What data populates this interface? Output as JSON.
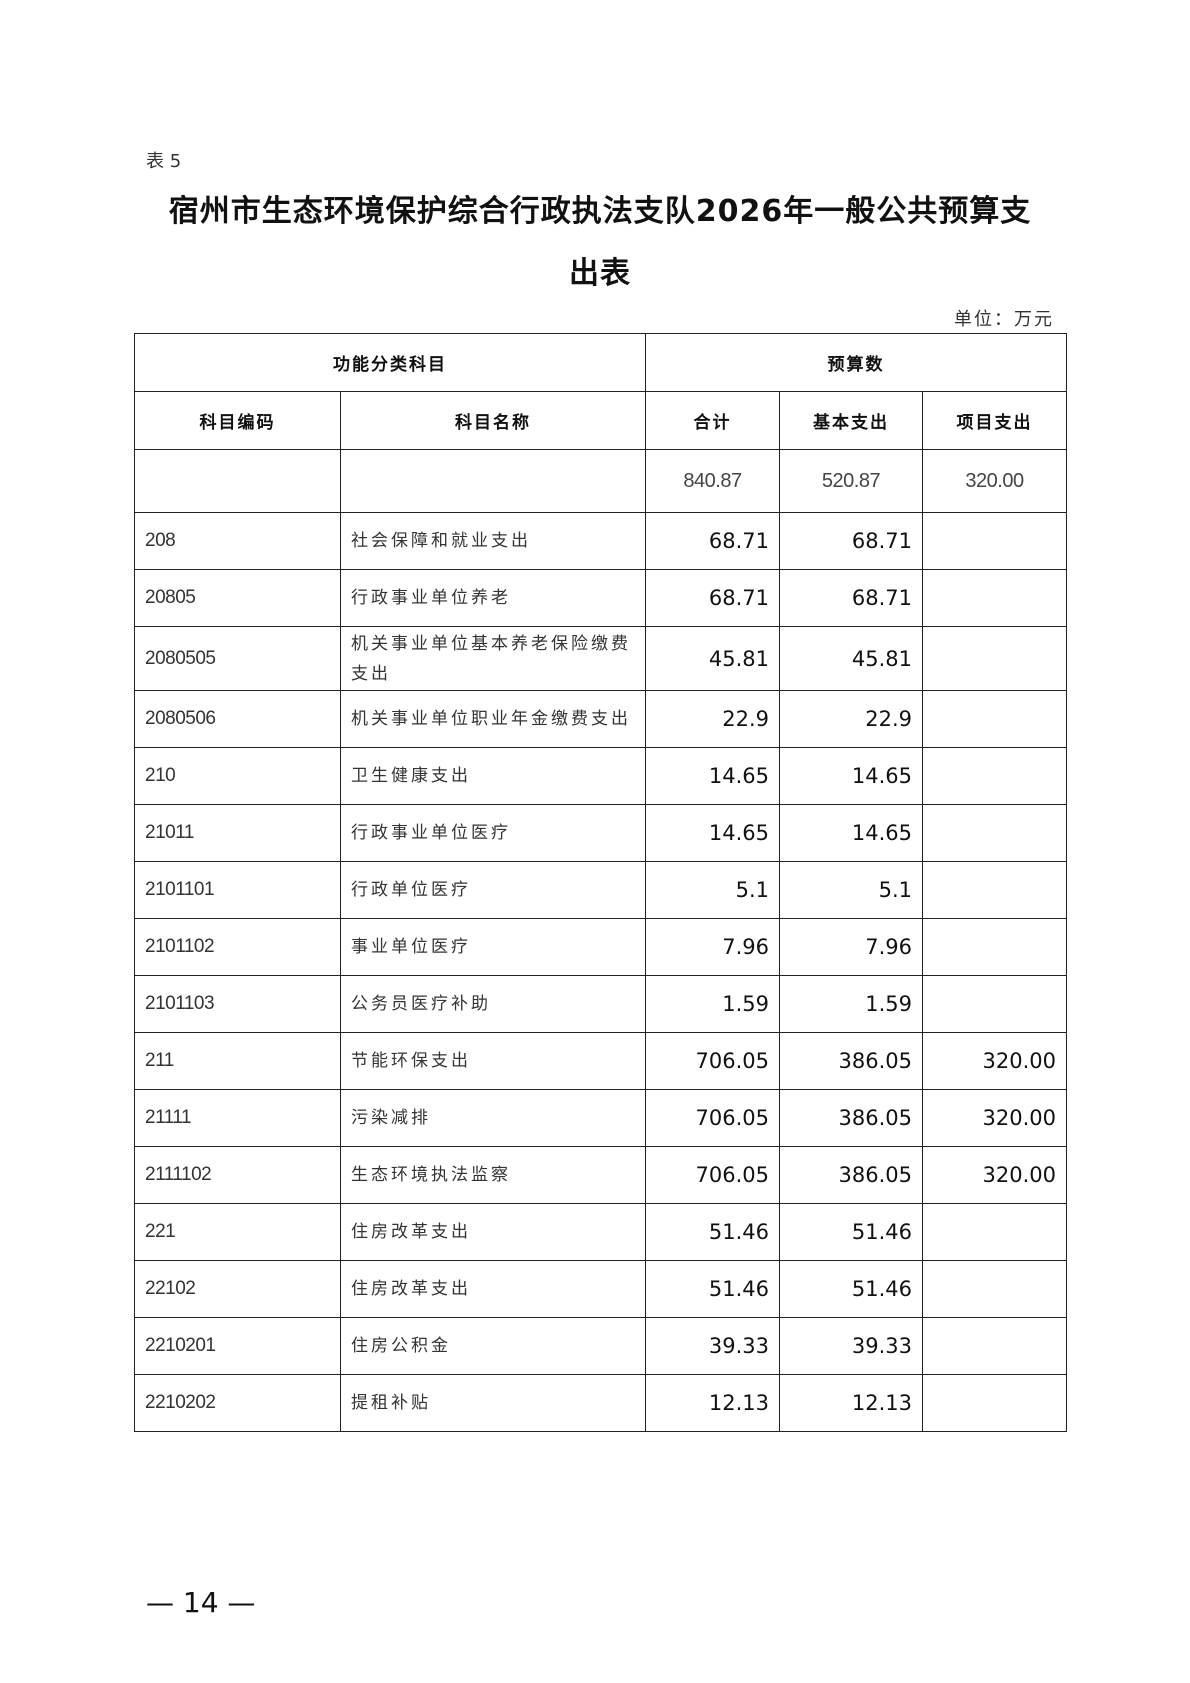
{
  "table_label": "表 5",
  "title_line1": "宿州市生态环境保护综合行政执法支队2026年一般公共预算支",
  "title_line2": "出表",
  "unit": "单位：万元",
  "headers": {
    "group_left": "功能分类科目",
    "group_right": "预算数",
    "code": "科目编码",
    "name": "科目名称",
    "total": "合计",
    "basic": "基本支出",
    "project": "项目支出"
  },
  "totals": {
    "total": "840.87",
    "basic": "520.87",
    "project": "320.00"
  },
  "rows": [
    {
      "code": "208",
      "name": "社会保障和就业支出",
      "total": "68.71",
      "basic": "68.71",
      "project": ""
    },
    {
      "code": "20805",
      "name": "行政事业单位养老",
      "total": "68.71",
      "basic": "68.71",
      "project": ""
    },
    {
      "code": "2080505",
      "name": "机关事业单位基本养老保险缴费支出",
      "total": "45.81",
      "basic": "45.81",
      "project": ""
    },
    {
      "code": "2080506",
      "name": "机关事业单位职业年金缴费支出",
      "total": "22.9",
      "basic": "22.9",
      "project": ""
    },
    {
      "code": "210",
      "name": "卫生健康支出",
      "total": "14.65",
      "basic": "14.65",
      "project": ""
    },
    {
      "code": "21011",
      "name": "行政事业单位医疗",
      "total": "14.65",
      "basic": "14.65",
      "project": ""
    },
    {
      "code": "2101101",
      "name": "行政单位医疗",
      "total": "5.1",
      "basic": "5.1",
      "project": ""
    },
    {
      "code": "2101102",
      "name": "事业单位医疗",
      "total": "7.96",
      "basic": "7.96",
      "project": ""
    },
    {
      "code": "2101103",
      "name": "公务员医疗补助",
      "total": "1.59",
      "basic": "1.59",
      "project": ""
    },
    {
      "code": "211",
      "name": "节能环保支出",
      "total": "706.05",
      "basic": "386.05",
      "project": "320.00"
    },
    {
      "code": "21111",
      "name": "污染减排",
      "total": "706.05",
      "basic": "386.05",
      "project": "320.00"
    },
    {
      "code": "2111102",
      "name": "生态环境执法监察",
      "total": "706.05",
      "basic": "386.05",
      "project": "320.00"
    },
    {
      "code": "221",
      "name": "住房改革支出",
      "total": "51.46",
      "basic": "51.46",
      "project": ""
    },
    {
      "code": "22102",
      "name": "住房改革支出",
      "total": "51.46",
      "basic": "51.46",
      "project": ""
    },
    {
      "code": "2210201",
      "name": "住房公积金",
      "total": "39.33",
      "basic": "39.33",
      "project": ""
    },
    {
      "code": "2210202",
      "name": "提租补贴",
      "total": "12.13",
      "basic": "12.13",
      "project": ""
    }
  ],
  "page_number": "— 14 —"
}
